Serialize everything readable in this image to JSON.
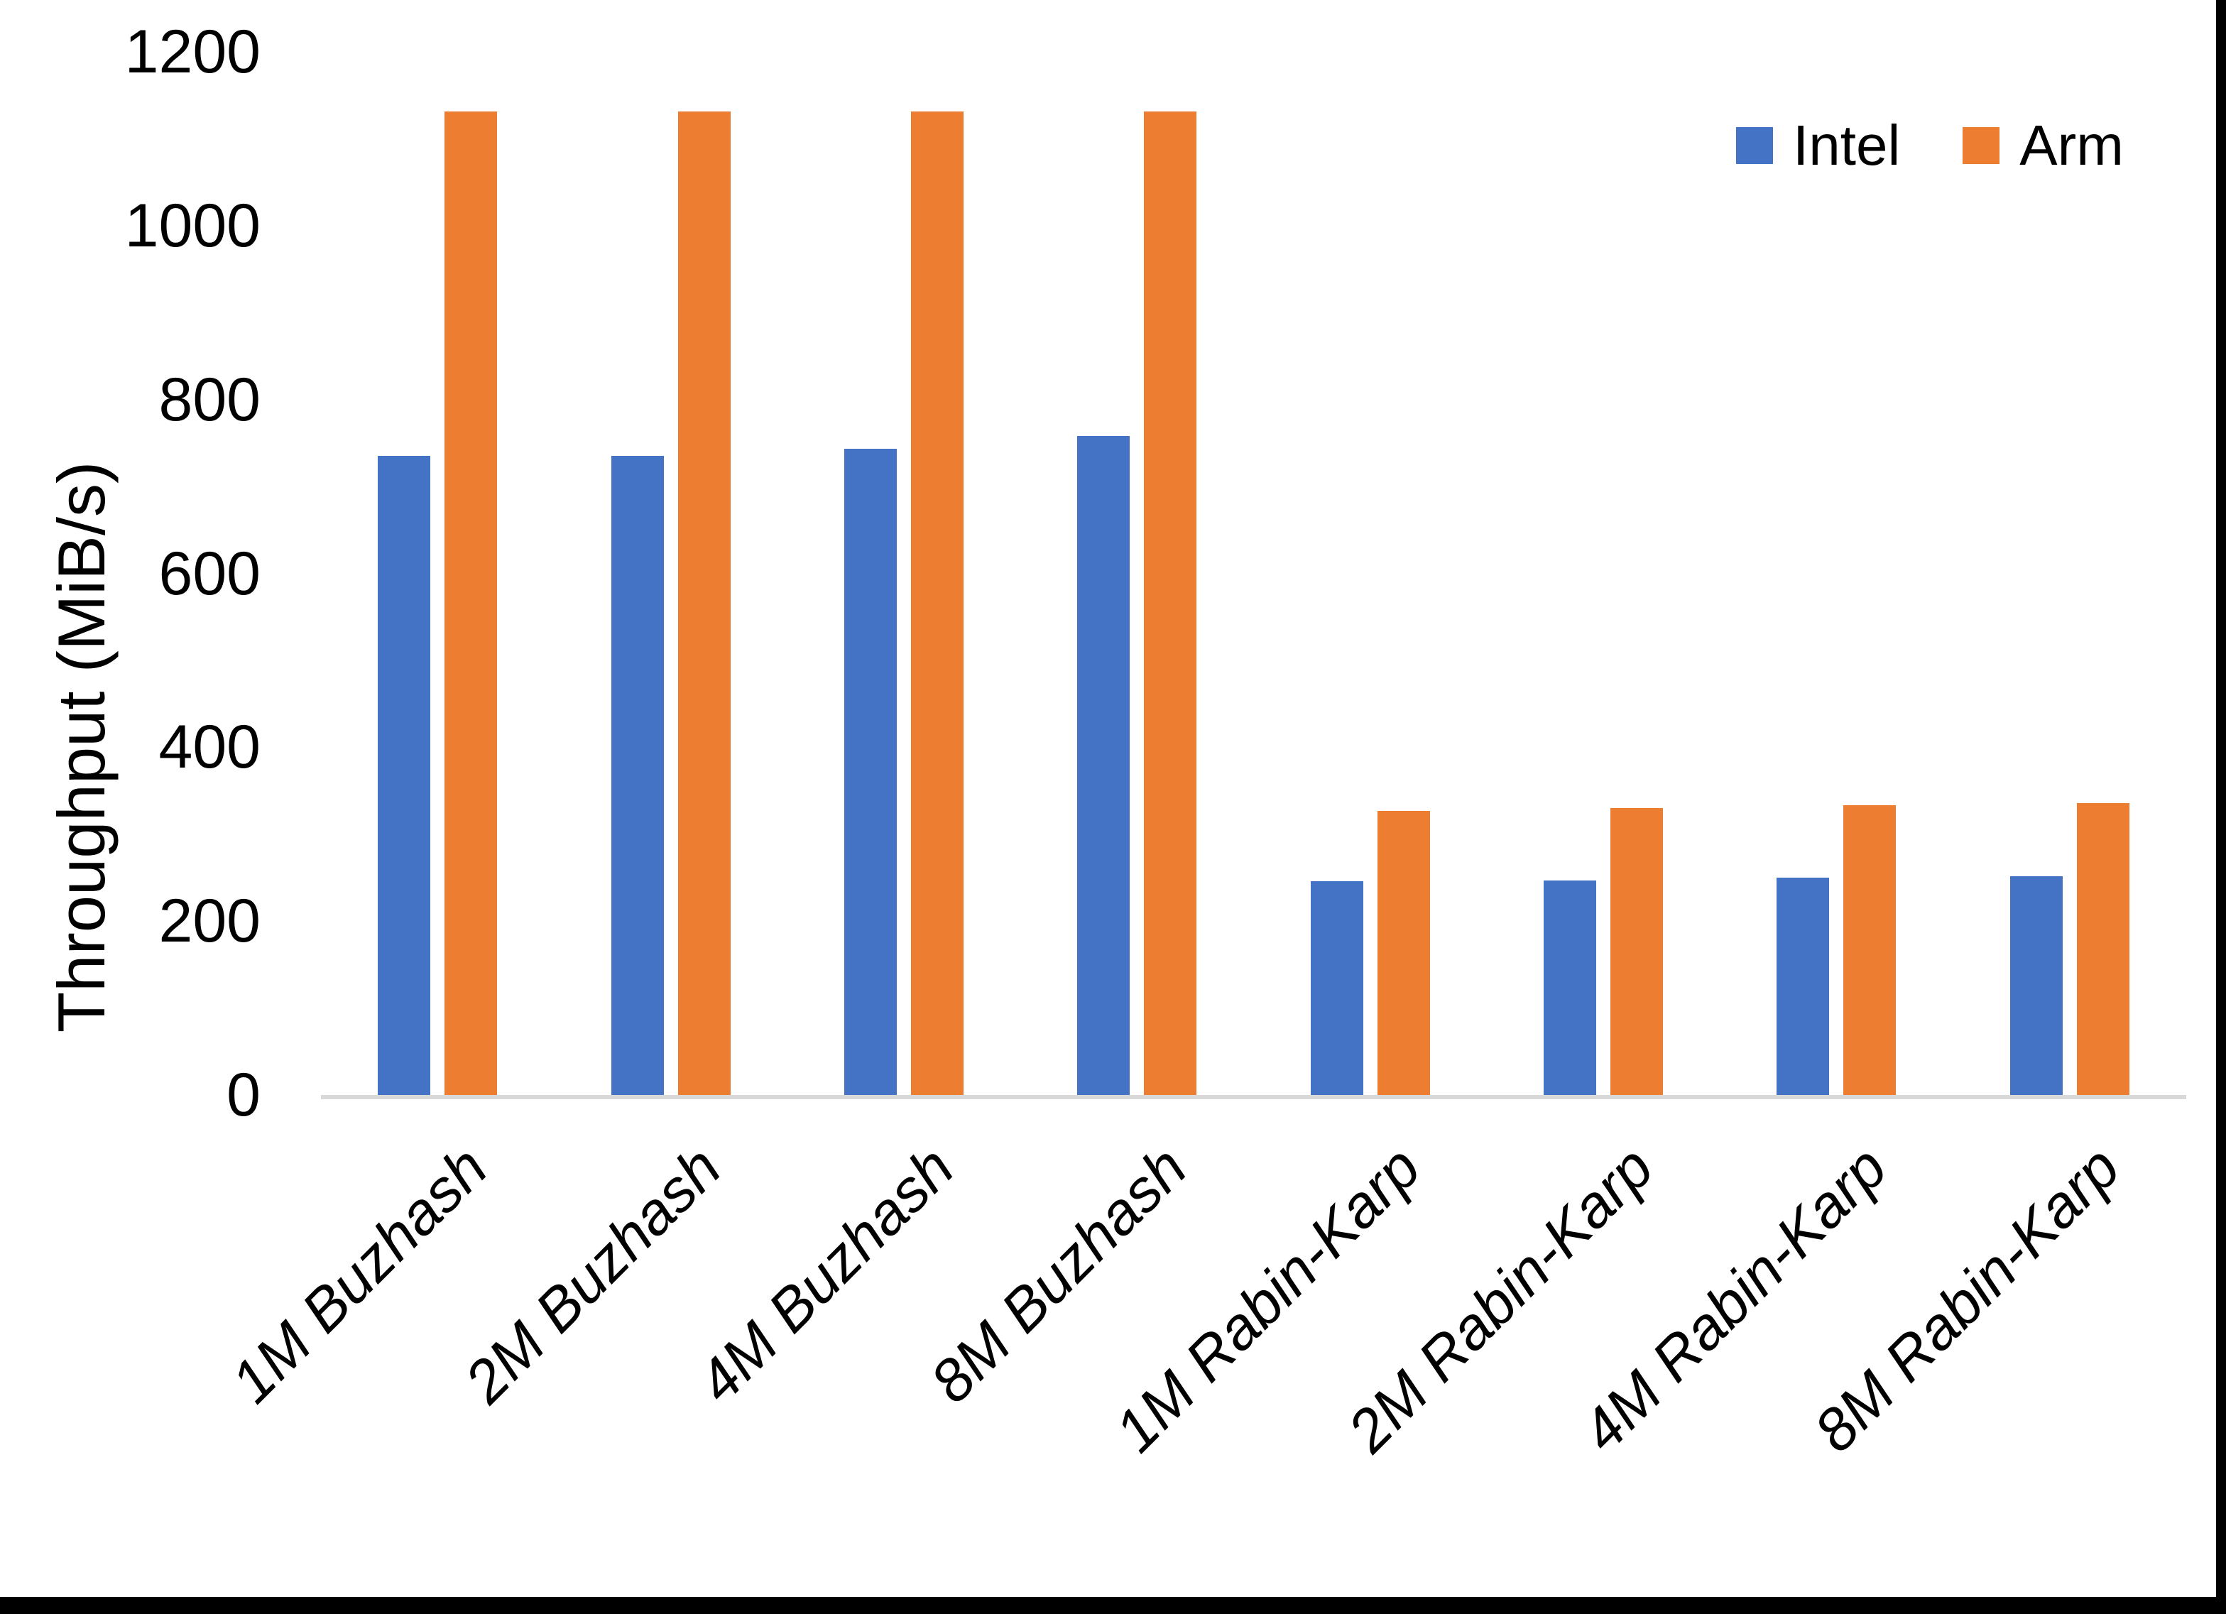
{
  "page": {
    "background": "#FFFFFF",
    "right_border_color": "#000000",
    "bottom_border_color": "#000000"
  },
  "chart_data": {
    "type": "bar",
    "title": "",
    "xlabel": "",
    "ylabel": "Throughput (MiB/s)",
    "ylim": [
      0,
      1200
    ],
    "ytick_step": 200,
    "yticks": [
      0,
      200,
      400,
      600,
      800,
      1000,
      1200
    ],
    "grid": false,
    "legend_position": "top-right",
    "axis_line_color": "#D9D9D9",
    "text_color": "#000000",
    "categories": [
      "1M Buzhash",
      "2M Buzhash",
      "4M Buzhash",
      "8M Buzhash",
      "1M Rabin-Karp",
      "2M Rabin-Karp",
      "4M Rabin-Karp",
      "8M Rabin-Karp"
    ],
    "series": [
      {
        "name": "Intel",
        "color": "#4472C4",
        "values": [
          735,
          735,
          743,
          758,
          246,
          247,
          250,
          252
        ]
      },
      {
        "name": "Arm",
        "color": "#ED7D31",
        "values": [
          1131,
          1131,
          1131,
          1131,
          327,
          330,
          333,
          336
        ]
      }
    ]
  }
}
